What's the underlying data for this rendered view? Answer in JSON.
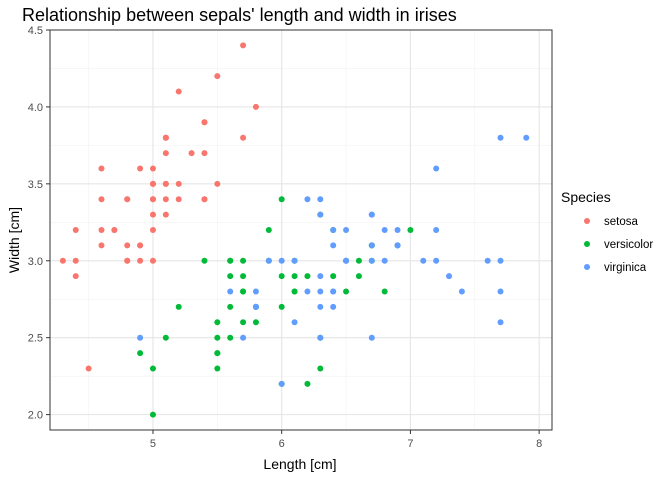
{
  "chart_data": {
    "type": "scatter",
    "title": "Relationship between sepals' length and width in irises",
    "xlabel": "Length [cm]",
    "ylabel": "Width [cm]",
    "xlim": [
      4.2,
      8.1
    ],
    "ylim": [
      1.9,
      4.5
    ],
    "x_ticks": [
      5,
      6,
      7,
      8
    ],
    "y_ticks": [
      2.0,
      2.5,
      3.0,
      3.5,
      4.0,
      4.5
    ],
    "x_tick_labels": [
      "5",
      "6",
      "7",
      "8"
    ],
    "y_tick_labels": [
      "2.0",
      "2.5",
      "3.0",
      "3.5",
      "4.0",
      "4.5"
    ],
    "grid": true,
    "legend": {
      "title": "Species",
      "position": "right"
    },
    "series": [
      {
        "name": "setosa",
        "color": "#F8766D",
        "points": [
          [
            5.1,
            3.5
          ],
          [
            4.9,
            3.0
          ],
          [
            4.7,
            3.2
          ],
          [
            4.6,
            3.1
          ],
          [
            5.0,
            3.6
          ],
          [
            5.4,
            3.9
          ],
          [
            4.6,
            3.4
          ],
          [
            5.0,
            3.4
          ],
          [
            4.4,
            2.9
          ],
          [
            4.9,
            3.1
          ],
          [
            5.4,
            3.7
          ],
          [
            4.8,
            3.4
          ],
          [
            4.8,
            3.0
          ],
          [
            4.3,
            3.0
          ],
          [
            5.8,
            4.0
          ],
          [
            5.7,
            4.4
          ],
          [
            5.4,
            3.9
          ],
          [
            5.1,
            3.5
          ],
          [
            5.7,
            3.8
          ],
          [
            5.1,
            3.8
          ],
          [
            5.4,
            3.4
          ],
          [
            5.1,
            3.7
          ],
          [
            4.6,
            3.6
          ],
          [
            5.1,
            3.3
          ],
          [
            4.8,
            3.4
          ],
          [
            5.0,
            3.0
          ],
          [
            5.0,
            3.4
          ],
          [
            5.2,
            3.5
          ],
          [
            5.2,
            3.4
          ],
          [
            4.7,
            3.2
          ],
          [
            4.8,
            3.1
          ],
          [
            5.4,
            3.4
          ],
          [
            5.2,
            4.1
          ],
          [
            5.5,
            4.2
          ],
          [
            4.9,
            3.1
          ],
          [
            5.0,
            3.2
          ],
          [
            5.5,
            3.5
          ],
          [
            4.9,
            3.6
          ],
          [
            4.4,
            3.0
          ],
          [
            5.1,
            3.4
          ],
          [
            5.0,
            3.5
          ],
          [
            4.5,
            2.3
          ],
          [
            4.4,
            3.2
          ],
          [
            5.0,
            3.5
          ],
          [
            5.1,
            3.8
          ],
          [
            4.8,
            3.0
          ],
          [
            5.1,
            3.8
          ],
          [
            4.6,
            3.2
          ],
          [
            5.3,
            3.7
          ],
          [
            5.0,
            3.3
          ]
        ]
      },
      {
        "name": "versicolor",
        "color": "#00BA38",
        "points": [
          [
            7.0,
            3.2
          ],
          [
            6.4,
            3.2
          ],
          [
            6.9,
            3.1
          ],
          [
            5.5,
            2.3
          ],
          [
            6.5,
            2.8
          ],
          [
            5.7,
            2.8
          ],
          [
            6.3,
            3.3
          ],
          [
            4.9,
            2.4
          ],
          [
            6.6,
            2.9
          ],
          [
            5.2,
            2.7
          ],
          [
            5.0,
            2.0
          ],
          [
            5.9,
            3.0
          ],
          [
            6.0,
            2.2
          ],
          [
            6.1,
            2.9
          ],
          [
            5.6,
            2.9
          ],
          [
            6.7,
            3.1
          ],
          [
            5.6,
            3.0
          ],
          [
            5.8,
            2.7
          ],
          [
            6.2,
            2.2
          ],
          [
            5.6,
            2.5
          ],
          [
            5.9,
            3.2
          ],
          [
            6.1,
            2.8
          ],
          [
            6.3,
            2.5
          ],
          [
            6.1,
            2.8
          ],
          [
            6.4,
            2.9
          ],
          [
            6.6,
            3.0
          ],
          [
            6.8,
            2.8
          ],
          [
            6.7,
            3.0
          ],
          [
            6.0,
            2.9
          ],
          [
            5.7,
            2.6
          ],
          [
            5.5,
            2.4
          ],
          [
            5.5,
            2.4
          ],
          [
            5.8,
            2.7
          ],
          [
            6.0,
            2.7
          ],
          [
            5.4,
            3.0
          ],
          [
            6.0,
            3.4
          ],
          [
            6.7,
            3.1
          ],
          [
            6.3,
            2.3
          ],
          [
            5.6,
            3.0
          ],
          [
            5.5,
            2.5
          ],
          [
            5.5,
            2.6
          ],
          [
            6.1,
            3.0
          ],
          [
            5.8,
            2.6
          ],
          [
            5.0,
            2.3
          ],
          [
            5.6,
            2.7
          ],
          [
            5.7,
            3.0
          ],
          [
            5.7,
            2.9
          ],
          [
            6.2,
            2.9
          ],
          [
            5.1,
            2.5
          ],
          [
            5.7,
            2.8
          ]
        ]
      },
      {
        "name": "virginica",
        "color": "#619CFF",
        "points": [
          [
            6.3,
            3.3
          ],
          [
            5.8,
            2.7
          ],
          [
            7.1,
            3.0
          ],
          [
            6.3,
            2.9
          ],
          [
            6.5,
            3.0
          ],
          [
            7.6,
            3.0
          ],
          [
            4.9,
            2.5
          ],
          [
            7.3,
            2.9
          ],
          [
            6.7,
            2.5
          ],
          [
            7.2,
            3.6
          ],
          [
            6.5,
            3.2
          ],
          [
            6.4,
            2.7
          ],
          [
            6.8,
            3.0
          ],
          [
            5.7,
            2.5
          ],
          [
            5.8,
            2.8
          ],
          [
            6.4,
            3.2
          ],
          [
            6.5,
            3.0
          ],
          [
            7.7,
            3.8
          ],
          [
            7.7,
            2.6
          ],
          [
            6.0,
            2.2
          ],
          [
            6.9,
            3.2
          ],
          [
            5.6,
            2.8
          ],
          [
            7.7,
            2.8
          ],
          [
            6.3,
            2.7
          ],
          [
            6.7,
            3.3
          ],
          [
            7.2,
            3.2
          ],
          [
            6.2,
            2.8
          ],
          [
            6.1,
            3.0
          ],
          [
            6.4,
            2.8
          ],
          [
            7.2,
            3.0
          ],
          [
            7.4,
            2.8
          ],
          [
            7.9,
            3.8
          ],
          [
            6.4,
            2.8
          ],
          [
            6.3,
            2.8
          ],
          [
            6.1,
            2.6
          ],
          [
            7.7,
            3.0
          ],
          [
            6.3,
            3.4
          ],
          [
            6.4,
            3.1
          ],
          [
            6.0,
            3.0
          ],
          [
            6.9,
            3.1
          ],
          [
            6.7,
            3.1
          ],
          [
            6.9,
            3.1
          ],
          [
            5.8,
            2.7
          ],
          [
            6.8,
            3.2
          ],
          [
            6.7,
            3.3
          ],
          [
            6.7,
            3.0
          ],
          [
            6.3,
            2.5
          ],
          [
            6.5,
            3.0
          ],
          [
            6.2,
            3.4
          ],
          [
            5.9,
            3.0
          ]
        ]
      }
    ]
  }
}
